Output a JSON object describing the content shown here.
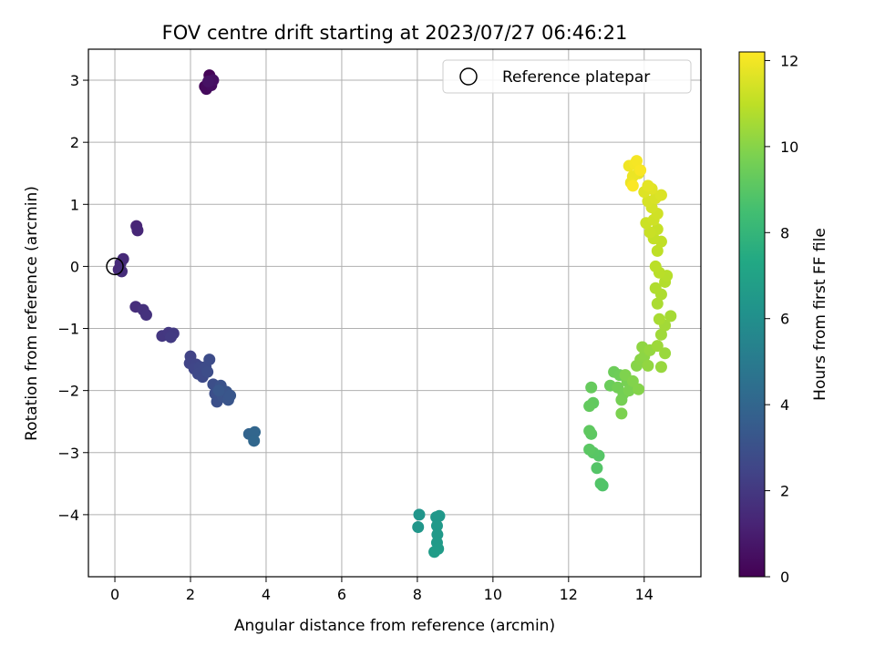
{
  "chart_data": {
    "type": "scatter",
    "title": "FOV centre drift starting at 2023/07/27 06:46:21",
    "xlabel": "Angular distance from reference (arcmin)",
    "ylabel": "Rotation from reference (arcmin)",
    "xlim": [
      -0.7,
      15.5
    ],
    "ylim": [
      -5.0,
      3.5
    ],
    "xticks": [
      0,
      2,
      4,
      6,
      8,
      10,
      12,
      14
    ],
    "yticks": [
      -4,
      -3,
      -2,
      -1,
      0,
      1,
      2,
      3
    ],
    "xtick_labels": [
      "0",
      "2",
      "4",
      "6",
      "8",
      "10",
      "12",
      "14"
    ],
    "ytick_labels": [
      "−4",
      "−3",
      "−2",
      "−1",
      "0",
      "1",
      "2",
      "3"
    ],
    "grid": true,
    "legend_position": "upper-right",
    "legend": [
      {
        "label": "Reference platepar",
        "marker": "open-circle"
      }
    ],
    "reference_point": {
      "x": 0,
      "y": 0
    },
    "colorbar": {
      "label": "Hours from first FF file",
      "colormap": "viridis",
      "range": [
        0,
        12.2
      ],
      "ticks": [
        0,
        2,
        4,
        6,
        8,
        10,
        12
      ],
      "tick_labels": [
        "0",
        "2",
        "4",
        "6",
        "8",
        "10",
        "12"
      ]
    },
    "series": [
      {
        "color_value": "hours",
        "points": [
          {
            "x": 2.5,
            "y": 3.08,
            "h": 0.1
          },
          {
            "x": 2.38,
            "y": 2.9,
            "h": 0.2
          },
          {
            "x": 2.42,
            "y": 2.86,
            "h": 0.3
          },
          {
            "x": 2.55,
            "y": 2.92,
            "h": 0.4
          },
          {
            "x": 2.6,
            "y": 3.0,
            "h": 0.5
          },
          {
            "x": 2.47,
            "y": 2.98,
            "h": 0.6
          },
          {
            "x": 0.57,
            "y": 0.65,
            "h": 1.3
          },
          {
            "x": 0.6,
            "y": 0.58,
            "h": 1.35
          },
          {
            "x": 0.1,
            "y": -0.05,
            "h": 1.4
          },
          {
            "x": 0.22,
            "y": 0.12,
            "h": 1.45
          },
          {
            "x": 0.15,
            "y": 0.05,
            "h": 1.5
          },
          {
            "x": 0.18,
            "y": -0.08,
            "h": 1.55
          },
          {
            "x": 0.55,
            "y": -0.65,
            "h": 1.6
          },
          {
            "x": 0.75,
            "y": -0.7,
            "h": 1.7
          },
          {
            "x": 0.83,
            "y": -0.78,
            "h": 1.75
          },
          {
            "x": 1.25,
            "y": -1.12,
            "h": 1.95
          },
          {
            "x": 1.42,
            "y": -1.07,
            "h": 2.0
          },
          {
            "x": 1.55,
            "y": -1.08,
            "h": 2.05
          },
          {
            "x": 1.48,
            "y": -1.14,
            "h": 2.1
          },
          {
            "x": 2.0,
            "y": -1.45,
            "h": 2.4
          },
          {
            "x": 1.98,
            "y": -1.56,
            "h": 2.45
          },
          {
            "x": 2.15,
            "y": -1.58,
            "h": 2.5
          },
          {
            "x": 2.1,
            "y": -1.65,
            "h": 2.55
          },
          {
            "x": 2.25,
            "y": -1.62,
            "h": 2.6
          },
          {
            "x": 2.2,
            "y": -1.73,
            "h": 2.65
          },
          {
            "x": 2.32,
            "y": -1.78,
            "h": 2.7
          },
          {
            "x": 2.4,
            "y": -1.62,
            "h": 2.75
          },
          {
            "x": 2.5,
            "y": -1.5,
            "h": 2.8
          },
          {
            "x": 2.45,
            "y": -1.7,
            "h": 2.85
          },
          {
            "x": 2.6,
            "y": -1.9,
            "h": 2.9
          },
          {
            "x": 2.65,
            "y": -2.05,
            "h": 2.95
          },
          {
            "x": 2.7,
            "y": -2.18,
            "h": 3.0
          },
          {
            "x": 2.8,
            "y": -1.92,
            "h": 3.05
          },
          {
            "x": 2.85,
            "y": -2.1,
            "h": 3.1
          },
          {
            "x": 2.95,
            "y": -2.02,
            "h": 3.15
          },
          {
            "x": 3.0,
            "y": -2.15,
            "h": 3.2
          },
          {
            "x": 3.05,
            "y": -2.08,
            "h": 3.25
          },
          {
            "x": 2.75,
            "y": -2.0,
            "h": 3.3
          },
          {
            "x": 3.55,
            "y": -2.7,
            "h": 3.9
          },
          {
            "x": 3.7,
            "y": -2.67,
            "h": 4.0
          },
          {
            "x": 3.68,
            "y": -2.81,
            "h": 4.05
          },
          {
            "x": 8.05,
            "y": -4.0,
            "h": 6.3
          },
          {
            "x": 8.02,
            "y": -4.2,
            "h": 6.35
          },
          {
            "x": 8.5,
            "y": -4.04,
            "h": 6.4
          },
          {
            "x": 8.58,
            "y": -4.02,
            "h": 6.45
          },
          {
            "x": 8.52,
            "y": -4.18,
            "h": 6.5
          },
          {
            "x": 8.53,
            "y": -4.32,
            "h": 6.55
          },
          {
            "x": 8.52,
            "y": -4.45,
            "h": 6.6
          },
          {
            "x": 8.55,
            "y": -4.55,
            "h": 6.65
          },
          {
            "x": 8.45,
            "y": -4.6,
            "h": 6.7
          },
          {
            "x": 12.9,
            "y": -3.53,
            "h": 8.8
          },
          {
            "x": 12.85,
            "y": -3.5,
            "h": 8.85
          },
          {
            "x": 12.75,
            "y": -3.25,
            "h": 8.9
          },
          {
            "x": 12.8,
            "y": -3.05,
            "h": 8.95
          },
          {
            "x": 12.65,
            "y": -3.0,
            "h": 9.0
          },
          {
            "x": 12.55,
            "y": -2.95,
            "h": 9.05
          },
          {
            "x": 12.6,
            "y": -2.7,
            "h": 9.1
          },
          {
            "x": 12.55,
            "y": -2.65,
            "h": 9.15
          },
          {
            "x": 12.65,
            "y": -2.2,
            "h": 9.2
          },
          {
            "x": 12.55,
            "y": -2.25,
            "h": 9.25
          },
          {
            "x": 12.6,
            "y": -1.95,
            "h": 9.3
          },
          {
            "x": 13.1,
            "y": -1.92,
            "h": 9.4
          },
          {
            "x": 13.2,
            "y": -1.7,
            "h": 9.45
          },
          {
            "x": 13.35,
            "y": -1.75,
            "h": 9.5
          },
          {
            "x": 13.3,
            "y": -1.95,
            "h": 9.55
          },
          {
            "x": 13.45,
            "y": -2.05,
            "h": 9.6
          },
          {
            "x": 13.4,
            "y": -2.15,
            "h": 9.65
          },
          {
            "x": 13.55,
            "y": -1.85,
            "h": 9.7
          },
          {
            "x": 13.6,
            "y": -2.0,
            "h": 9.75
          },
          {
            "x": 13.4,
            "y": -2.37,
            "h": 9.8
          },
          {
            "x": 13.5,
            "y": -1.75,
            "h": 9.85
          },
          {
            "x": 13.7,
            "y": -1.85,
            "h": 9.9
          },
          {
            "x": 13.85,
            "y": -1.98,
            "h": 9.95
          },
          {
            "x": 13.8,
            "y": -1.6,
            "h": 10.0
          },
          {
            "x": 13.9,
            "y": -1.5,
            "h": 10.05
          },
          {
            "x": 14.0,
            "y": -1.45,
            "h": 10.1
          },
          {
            "x": 13.95,
            "y": -1.3,
            "h": 10.15
          },
          {
            "x": 14.1,
            "y": -1.6,
            "h": 10.2
          },
          {
            "x": 14.15,
            "y": -1.35,
            "h": 10.25
          },
          {
            "x": 14.45,
            "y": -1.62,
            "h": 10.3
          },
          {
            "x": 14.55,
            "y": -1.4,
            "h": 10.35
          },
          {
            "x": 14.35,
            "y": -1.28,
            "h": 10.4
          },
          {
            "x": 14.45,
            "y": -1.1,
            "h": 10.45
          },
          {
            "x": 14.55,
            "y": -0.95,
            "h": 10.5
          },
          {
            "x": 14.7,
            "y": -0.8,
            "h": 10.55
          },
          {
            "x": 14.4,
            "y": -0.85,
            "h": 10.6
          },
          {
            "x": 14.35,
            "y": -0.6,
            "h": 10.65
          },
          {
            "x": 14.45,
            "y": -0.45,
            "h": 10.7
          },
          {
            "x": 14.3,
            "y": -0.35,
            "h": 10.75
          },
          {
            "x": 14.55,
            "y": -0.25,
            "h": 10.8
          },
          {
            "x": 14.6,
            "y": -0.15,
            "h": 10.85
          },
          {
            "x": 14.4,
            "y": -0.1,
            "h": 10.9
          },
          {
            "x": 14.3,
            "y": 0.0,
            "h": 10.95
          },
          {
            "x": 14.35,
            "y": 0.25,
            "h": 11.0
          },
          {
            "x": 14.45,
            "y": 0.4,
            "h": 11.05
          },
          {
            "x": 14.25,
            "y": 0.45,
            "h": 11.1
          },
          {
            "x": 14.35,
            "y": 0.6,
            "h": 11.15
          },
          {
            "x": 14.15,
            "y": 0.55,
            "h": 11.2
          },
          {
            "x": 14.05,
            "y": 0.7,
            "h": 11.25
          },
          {
            "x": 14.25,
            "y": 0.75,
            "h": 11.3
          },
          {
            "x": 14.35,
            "y": 0.85,
            "h": 11.35
          },
          {
            "x": 14.2,
            "y": 0.95,
            "h": 11.4
          },
          {
            "x": 14.1,
            "y": 1.05,
            "h": 11.45
          },
          {
            "x": 14.3,
            "y": 1.1,
            "h": 11.5
          },
          {
            "x": 14.45,
            "y": 1.15,
            "h": 11.55
          },
          {
            "x": 14.0,
            "y": 1.2,
            "h": 11.6
          },
          {
            "x": 14.2,
            "y": 1.25,
            "h": 11.65
          },
          {
            "x": 14.1,
            "y": 1.3,
            "h": 11.7
          },
          {
            "x": 13.85,
            "y": 1.5,
            "h": 11.8
          },
          {
            "x": 13.7,
            "y": 1.45,
            "h": 11.85
          },
          {
            "x": 13.65,
            "y": 1.35,
            "h": 11.9
          },
          {
            "x": 13.6,
            "y": 1.62,
            "h": 11.95
          },
          {
            "x": 13.75,
            "y": 1.65,
            "h": 12.0
          },
          {
            "x": 13.8,
            "y": 1.7,
            "h": 12.05
          },
          {
            "x": 13.9,
            "y": 1.55,
            "h": 12.1
          },
          {
            "x": 13.7,
            "y": 1.3,
            "h": 12.15
          }
        ]
      }
    ]
  }
}
